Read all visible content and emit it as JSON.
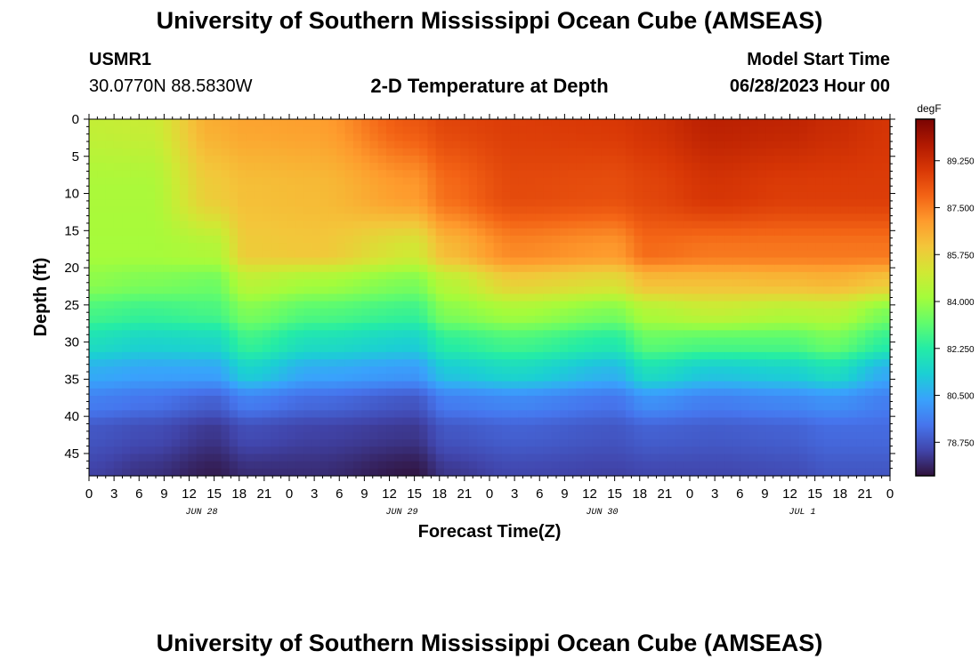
{
  "header": {
    "title": "University of Southern Mississippi Ocean Cube (AMSEAS)",
    "station": "USMR1",
    "coords": "30.0770N  88.5830W",
    "product": "2-D Temperature at Depth",
    "start_label": "Model Start Time",
    "start_value": "06/28/2023 Hour 00"
  },
  "footer": {
    "title": "University of Southern Mississippi Ocean Cube (AMSEAS)"
  },
  "chart_data": {
    "type": "heatmap",
    "title": "2-D Temperature at Depth",
    "xlabel": "Forecast Time(Z)",
    "ylabel": "Depth (ft)",
    "x_ticks": [
      "0",
      "3",
      "6",
      "9",
      "12",
      "15",
      "18",
      "21",
      "0",
      "3",
      "6",
      "9",
      "12",
      "15",
      "18",
      "21",
      "0",
      "3",
      "6",
      "9",
      "12",
      "15",
      "18",
      "21",
      "0",
      "3",
      "6",
      "9",
      "12",
      "15",
      "18",
      "21",
      "0"
    ],
    "x_range_hours": [
      0,
      96
    ],
    "date_labels": [
      {
        "label": "JUN 28",
        "hour": 13.5
      },
      {
        "label": "JUN 29",
        "hour": 37.5
      },
      {
        "label": "JUN 30",
        "hour": 61.5
      },
      {
        "label": "JUL 1",
        "hour": 85.5
      }
    ],
    "y_ticks": [
      0,
      5,
      10,
      15,
      20,
      25,
      30,
      35,
      40,
      45
    ],
    "ylim": [
      0,
      48
    ],
    "colorbar": {
      "unit": "degF",
      "tick_labels": [
        "89.250",
        "87.500",
        "85.750",
        "84.000",
        "82.250",
        "80.500",
        "78.750"
      ],
      "range": [
        77.5,
        90.8
      ],
      "colors": [
        "#30123b",
        "#4145ab",
        "#4675ed",
        "#39a2fc",
        "#1bcfd4",
        "#24eca6",
        "#61fc6c",
        "#a4fc3b",
        "#d1e834",
        "#f3c63a",
        "#fe9b2d",
        "#f36315",
        "#d93806",
        "#b11901",
        "#7a0402"
      ]
    },
    "profile_hours": [
      0,
      7,
      15,
      19,
      27,
      39,
      43,
      51,
      63,
      67,
      75,
      84,
      89,
      96
    ],
    "profiles": [
      {
        "depth": 0,
        "temps": [
          84.8,
          84.9,
          86.6,
          86.8,
          86.9,
          88.2,
          88.6,
          88.8,
          88.9,
          89.1,
          89.6,
          89.5,
          89.3,
          89.0
        ]
      },
      {
        "depth": 10,
        "temps": [
          84.3,
          84.3,
          85.9,
          86.2,
          86.3,
          87.0,
          87.8,
          88.5,
          88.4,
          88.6,
          89.0,
          88.8,
          88.8,
          88.8
        ]
      },
      {
        "depth": 18,
        "temps": [
          84.2,
          84.2,
          84.4,
          85.9,
          86.0,
          85.1,
          86.3,
          87.3,
          87.0,
          87.8,
          87.6,
          87.6,
          87.6,
          87.6
        ]
      },
      {
        "depth": 22,
        "temps": [
          83.8,
          83.6,
          83.4,
          84.6,
          84.2,
          83.6,
          84.6,
          85.8,
          85.4,
          86.2,
          86.2,
          86.3,
          86.4,
          86.0
        ]
      },
      {
        "depth": 26,
        "temps": [
          82.8,
          82.6,
          82.8,
          83.6,
          83.0,
          82.6,
          83.7,
          84.2,
          83.6,
          84.4,
          84.8,
          84.5,
          84.6,
          83.6
        ]
      },
      {
        "depth": 30,
        "temps": [
          81.8,
          81.5,
          81.6,
          82.6,
          81.8,
          81.4,
          82.4,
          82.8,
          82.2,
          83.2,
          83.0,
          83.0,
          83.4,
          82.4
        ]
      },
      {
        "depth": 34,
        "temps": [
          80.6,
          80.4,
          80.4,
          81.4,
          80.5,
          80.2,
          81.2,
          81.6,
          80.8,
          81.8,
          81.2,
          81.4,
          81.8,
          80.6
        ]
      },
      {
        "depth": 38,
        "temps": [
          79.6,
          79.4,
          79.0,
          79.6,
          79.2,
          78.8,
          79.6,
          79.8,
          79.4,
          80.0,
          79.6,
          79.8,
          80.0,
          79.6
        ]
      },
      {
        "depth": 42,
        "temps": [
          78.8,
          78.6,
          78.2,
          78.6,
          78.4,
          78.2,
          78.8,
          79.0,
          78.8,
          79.0,
          78.9,
          79.0,
          79.2,
          79.2
        ]
      },
      {
        "depth": 48,
        "temps": [
          78.4,
          78.1,
          77.7,
          78.0,
          78.0,
          77.6,
          78.2,
          78.5,
          78.4,
          78.5,
          78.5,
          78.6,
          78.8,
          78.8
        ]
      }
    ]
  }
}
